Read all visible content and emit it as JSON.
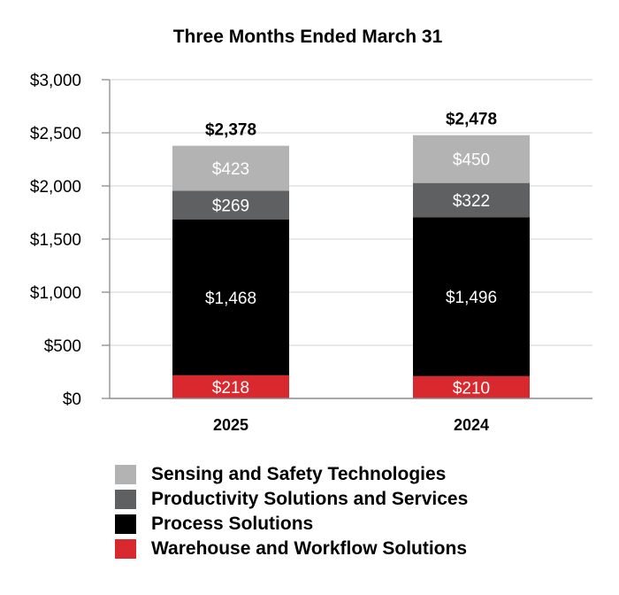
{
  "chart_data": {
    "type": "bar",
    "stacked": true,
    "title": "Three Months Ended March 31",
    "categories": [
      "2025",
      "2024"
    ],
    "totals": [
      "$2,378",
      "$2,478"
    ],
    "ylim": [
      0,
      3000
    ],
    "yticks": [
      0,
      500,
      1000,
      1500,
      2000,
      2500,
      3000
    ],
    "ytick_labels": [
      "$0",
      "$500",
      "$1,000",
      "$1,500",
      "$2,000",
      "$2,500",
      "$3,000"
    ],
    "grid": true,
    "legend_position": "bottom",
    "series": [
      {
        "name": "Warehouse and Workflow Solutions",
        "color": "#d9282e",
        "values": [
          218,
          210
        ],
        "labels": [
          "$218",
          "$210"
        ]
      },
      {
        "name": "Process Solutions",
        "color": "#000000",
        "values": [
          1468,
          1496
        ],
        "labels": [
          "$1,468",
          "$1,496"
        ]
      },
      {
        "name": "Productivity Solutions and Services",
        "color": "#5f6062",
        "values": [
          269,
          322
        ],
        "labels": [
          "$269",
          "$322"
        ]
      },
      {
        "name": "Sensing and Safety Technologies",
        "color": "#b3b3b3",
        "values": [
          423,
          450
        ],
        "labels": [
          "$423",
          "$450"
        ]
      }
    ],
    "legend_order": [
      3,
      2,
      1,
      0
    ]
  }
}
